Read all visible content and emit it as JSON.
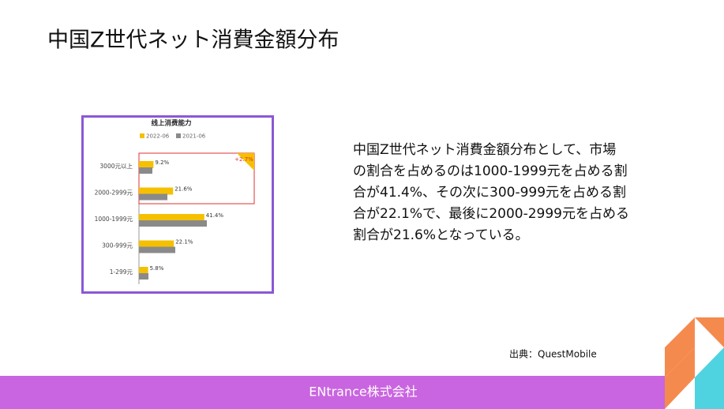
{
  "slide": {
    "title": "中国Z世代ネット消費金額分布",
    "text_lines": [
      "中国Z世代ネット消費金額分布として、市場",
      "の割合を占めるのは1000-1999元を占める割",
      "合が41.4%、その次に300-999元を占める割",
      "合が22.1%で、最後に2000-2999元を占める",
      "割合が21.6%となっている。"
    ],
    "source": "出典：QuestMobile",
    "footer": "ENtrance株式会社"
  },
  "chart_data": {
    "type": "bar",
    "orientation": "horizontal",
    "title": "线上消费能力",
    "categories": [
      "3000元以上",
      "2000-2999元",
      "1000-1999元",
      "300-999元",
      "1-299元"
    ],
    "series": [
      {
        "name": "2022-06",
        "color": "#f5c000",
        "values": [
          9.2,
          21.6,
          41.4,
          22.1,
          5.8
        ],
        "value_labels": [
          "9.2%",
          "21.6%",
          "41.4%",
          "22.1%",
          "5.8%"
        ]
      },
      {
        "name": "2021-06",
        "color": "#8a8a8a",
        "values": [
          8.5,
          18,
          43,
          23,
          6
        ]
      }
    ],
    "annotation": "+2.7%"
  }
}
